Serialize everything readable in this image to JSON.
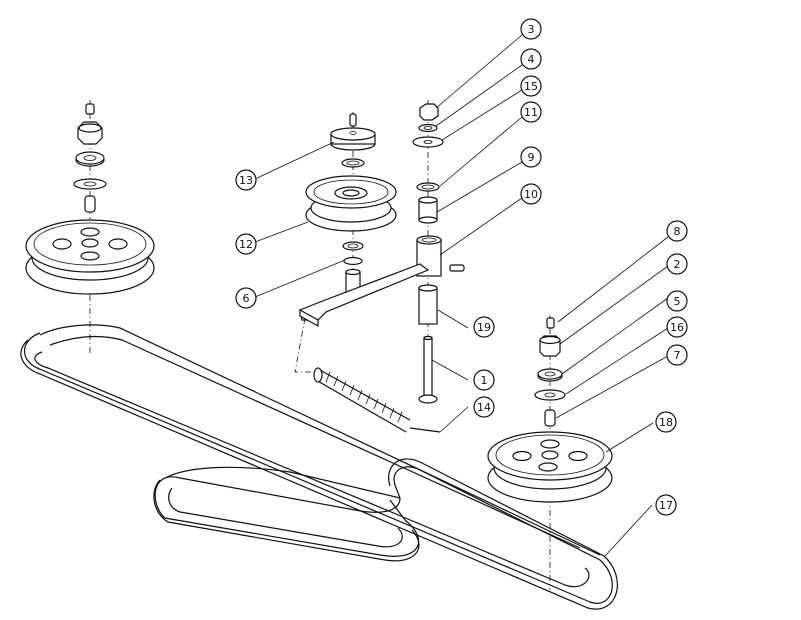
{
  "diagram": {
    "callouts": [
      {
        "id": "c3",
        "label": "3"
      },
      {
        "id": "c4",
        "label": "4"
      },
      {
        "id": "c15",
        "label": "15"
      },
      {
        "id": "c11",
        "label": "11"
      },
      {
        "id": "c9",
        "label": "9"
      },
      {
        "id": "c10",
        "label": "10"
      },
      {
        "id": "c13",
        "label": "13"
      },
      {
        "id": "c12",
        "label": "12"
      },
      {
        "id": "c6",
        "label": "6"
      },
      {
        "id": "c8",
        "label": "8"
      },
      {
        "id": "c2",
        "label": "2"
      },
      {
        "id": "c5",
        "label": "5"
      },
      {
        "id": "c16",
        "label": "16"
      },
      {
        "id": "c7",
        "label": "7"
      },
      {
        "id": "c19",
        "label": "19"
      },
      {
        "id": "c1",
        "label": "1"
      },
      {
        "id": "c14",
        "label": "14"
      },
      {
        "id": "c18",
        "label": "18"
      },
      {
        "id": "c17",
        "label": "17"
      }
    ]
  }
}
